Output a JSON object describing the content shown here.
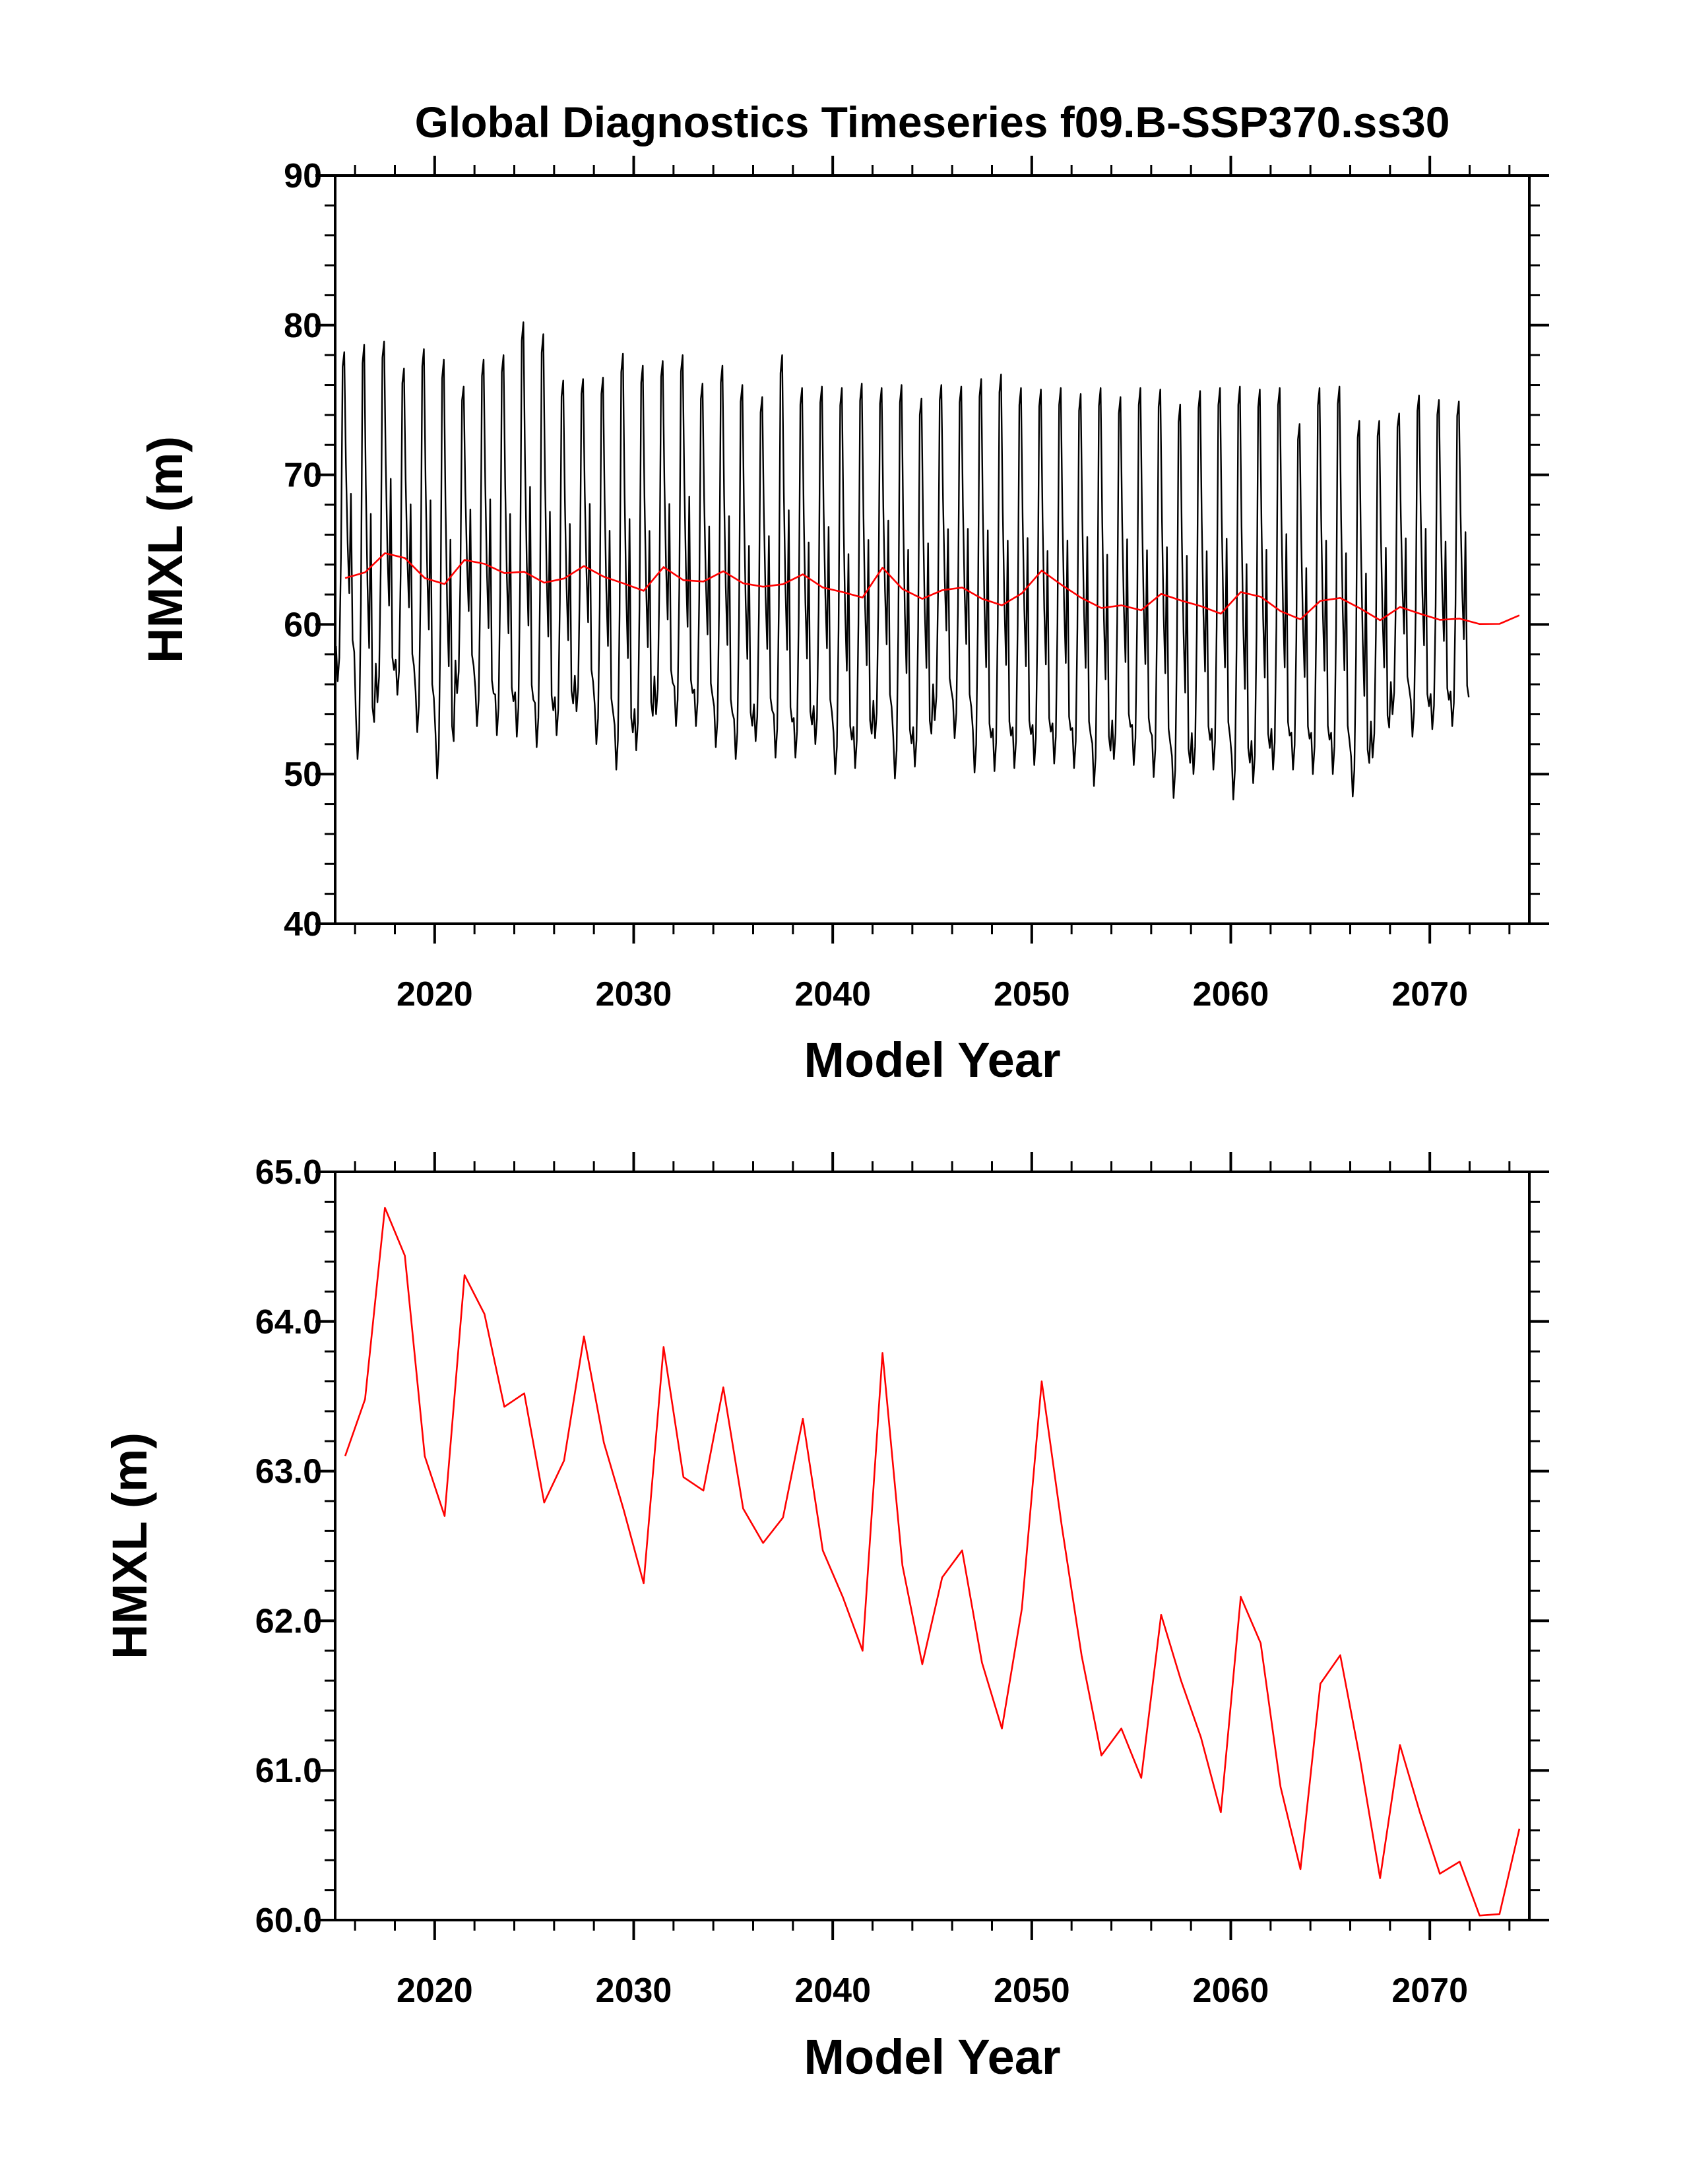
{
  "figure": {
    "title": "Global Diagnostics Timeseries f09.B-SSP370.ss30"
  },
  "chart_data": [
    {
      "type": "line",
      "xlabel": "Model Year",
      "ylabel": "HMXL (m)",
      "xlim": [
        2015,
        2075
      ],
      "ylim": [
        40,
        90
      ],
      "x_tick_labels": [
        "2020",
        "2030",
        "2040",
        "2050",
        "2060",
        "2070"
      ],
      "y_tick_labels": [
        "40",
        "50",
        "60",
        "70",
        "80",
        "90"
      ],
      "x_ticks": [
        2020,
        2030,
        2040,
        2050,
        2060,
        2070
      ],
      "y_ticks": [
        40,
        50,
        60,
        70,
        80,
        90
      ],
      "series_colors": [
        "#000000",
        "#ff0000"
      ],
      "series": [
        {
          "style": "monthly",
          "color": "#000000",
          "year_start": 2015,
          "seasonal_max": [
            78.2,
            78.7,
            78.9,
            77.1,
            78.4,
            77.7,
            75.9,
            77.7,
            78.0,
            80.2,
            79.4,
            76.3,
            76.4,
            76.5,
            78.1,
            77.3,
            77.6,
            78.0,
            76.1,
            77.3,
            76.0,
            75.2,
            78.0,
            75.8,
            75.9,
            75.8,
            76.1,
            75.8,
            76.0,
            75.1,
            76.0,
            75.9,
            76.4,
            76.7,
            75.8,
            75.7,
            75.8,
            75.4,
            75.8,
            75.2,
            75.8,
            75.7,
            74.7,
            75.6,
            75.8,
            75.9,
            75.7,
            75.8,
            73.4,
            75.8,
            75.9,
            73.6,
            73.6,
            74.1,
            75.3,
            75.0,
            74.9
          ],
          "seasonal_min": [
            56.2,
            51.0,
            54.8,
            55.3,
            52.8,
            49.7,
            55.4,
            53.2,
            52.6,
            52.5,
            51.8,
            52.6,
            54.2,
            52.0,
            50.3,
            51.6,
            54.0,
            53.2,
            53.2,
            51.8,
            51.0,
            52.2,
            51.1,
            51.1,
            52.0,
            50.0,
            50.4,
            52.4,
            49.7,
            50.5,
            53.6,
            52.4,
            50.1,
            50.2,
            50.4,
            50.6,
            50.7,
            50.4,
            49.2,
            51.0,
            50.6,
            49.8,
            48.4,
            50.0,
            50.3,
            48.3,
            49.4,
            50.3,
            50.3,
            50.0,
            50.0,
            48.5,
            51.1,
            54.0,
            52.5,
            53.0,
            53.2
          ]
        },
        {
          "style": "annual",
          "color": "#ff0000",
          "x": [
            2015.5,
            2016.5,
            2017.5,
            2018.5,
            2019.5,
            2020.5,
            2021.5,
            2022.5,
            2023.5,
            2024.5,
            2025.5,
            2026.5,
            2027.5,
            2028.5,
            2029.5,
            2030.5,
            2031.5,
            2032.5,
            2033.5,
            2034.5,
            2035.5,
            2036.5,
            2037.5,
            2038.5,
            2039.5,
            2040.5,
            2041.5,
            2042.5,
            2043.5,
            2044.5,
            2045.5,
            2046.5,
            2047.5,
            2048.5,
            2049.5,
            2050.5,
            2051.5,
            2052.5,
            2053.5,
            2054.5,
            2055.5,
            2056.5,
            2057.5,
            2058.5,
            2059.5,
            2060.5,
            2061.5,
            2062.5,
            2063.5,
            2064.5,
            2065.5,
            2066.5,
            2067.5,
            2068.5,
            2069.5,
            2070.5,
            2071.5,
            2072.5,
            2073.5,
            2074.5
          ],
          "values": [
            63.1,
            63.48,
            64.76,
            64.44,
            63.1,
            62.7,
            64.31,
            64.05,
            63.43,
            63.52,
            62.79,
            63.07,
            63.9,
            63.19,
            62.74,
            62.25,
            63.83,
            62.96,
            62.87,
            63.56,
            62.75,
            62.52,
            62.69,
            63.35,
            62.47,
            62.16,
            61.8,
            63.79,
            62.37,
            61.71,
            62.29,
            62.47,
            61.72,
            61.28,
            62.08,
            63.6,
            62.64,
            61.77,
            61.1,
            61.28,
            60.95,
            62.04,
            61.6,
            61.22,
            60.72,
            62.16,
            61.85,
            60.89,
            60.34,
            61.58,
            61.77,
            61.07,
            60.28,
            61.17,
            60.72,
            60.31,
            60.39,
            60.03,
            60.04,
            60.61
          ]
        }
      ]
    },
    {
      "type": "line",
      "xlabel": "Model Year",
      "ylabel": "HMXL (m)",
      "xlim": [
        2015,
        2075
      ],
      "ylim": [
        60,
        65
      ],
      "x_tick_labels": [
        "2020",
        "2030",
        "2040",
        "2050",
        "2060",
        "2070"
      ],
      "y_tick_labels": [
        "60.0",
        "61.0",
        "62.0",
        "63.0",
        "64.0",
        "65.0"
      ],
      "x_ticks": [
        2020,
        2030,
        2040,
        2050,
        2060,
        2070
      ],
      "y_ticks": [
        60,
        61,
        62,
        63,
        64,
        65
      ],
      "series_colors": [
        "#ff0000"
      ],
      "series": [
        {
          "style": "annual",
          "color": "#ff0000",
          "x": [
            2015.5,
            2016.5,
            2017.5,
            2018.5,
            2019.5,
            2020.5,
            2021.5,
            2022.5,
            2023.5,
            2024.5,
            2025.5,
            2026.5,
            2027.5,
            2028.5,
            2029.5,
            2030.5,
            2031.5,
            2032.5,
            2033.5,
            2034.5,
            2035.5,
            2036.5,
            2037.5,
            2038.5,
            2039.5,
            2040.5,
            2041.5,
            2042.5,
            2043.5,
            2044.5,
            2045.5,
            2046.5,
            2047.5,
            2048.5,
            2049.5,
            2050.5,
            2051.5,
            2052.5,
            2053.5,
            2054.5,
            2055.5,
            2056.5,
            2057.5,
            2058.5,
            2059.5,
            2060.5,
            2061.5,
            2062.5,
            2063.5,
            2064.5,
            2065.5,
            2066.5,
            2067.5,
            2068.5,
            2069.5,
            2070.5,
            2071.5,
            2072.5,
            2073.5,
            2074.5
          ],
          "values": [
            63.1,
            63.48,
            64.76,
            64.44,
            63.1,
            62.7,
            64.31,
            64.05,
            63.43,
            63.52,
            62.79,
            63.07,
            63.9,
            63.19,
            62.74,
            62.25,
            63.83,
            62.96,
            62.87,
            63.56,
            62.75,
            62.52,
            62.69,
            63.35,
            62.47,
            62.16,
            61.8,
            63.79,
            62.37,
            61.71,
            62.29,
            62.47,
            61.72,
            61.28,
            62.08,
            63.6,
            62.64,
            61.77,
            61.1,
            61.28,
            60.95,
            62.04,
            61.6,
            61.22,
            60.72,
            62.16,
            61.85,
            60.89,
            60.34,
            61.58,
            61.77,
            61.07,
            60.28,
            61.17,
            60.72,
            60.31,
            60.39,
            60.03,
            60.04,
            60.61
          ]
        }
      ]
    }
  ]
}
